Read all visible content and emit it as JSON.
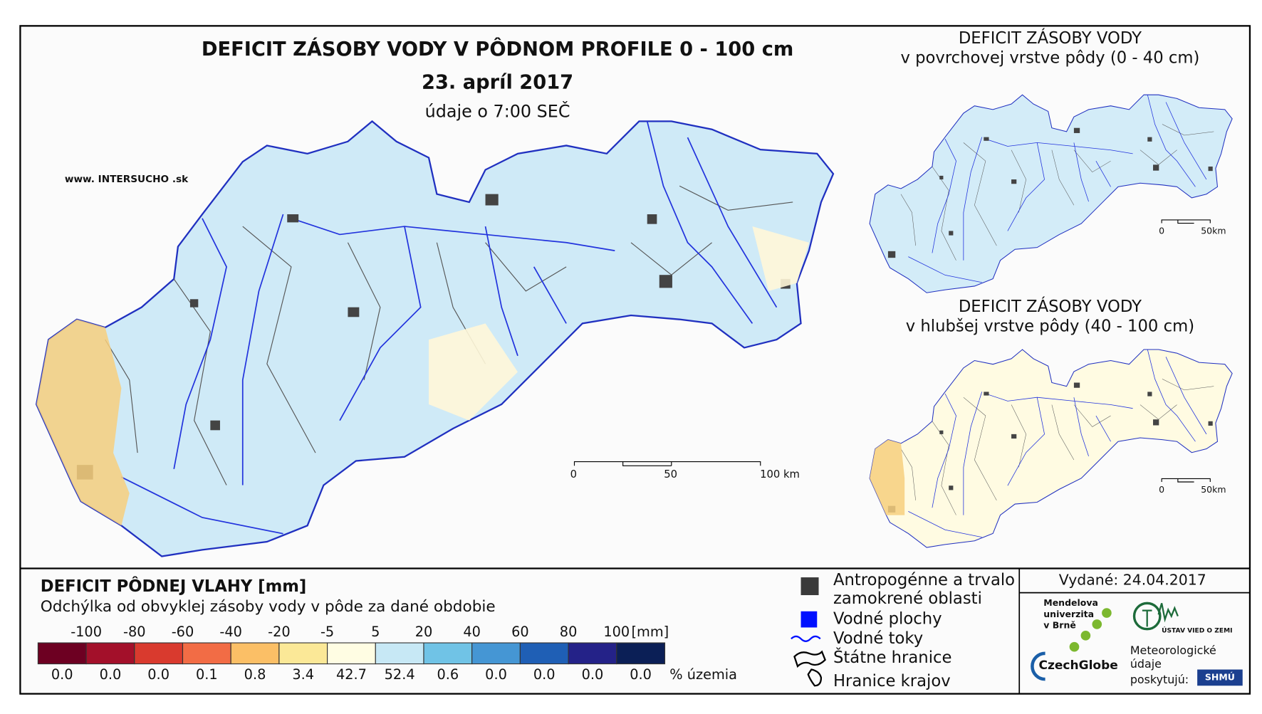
{
  "header": {
    "title": "DEFICIT ZÁSOBY VODY V PÔDNOM PROFILE 0 - 100 cm",
    "date": "23. apríl 2017",
    "time_note": "údaje o 7:00 SEČ",
    "website": "www. INTERSUCHO .sk"
  },
  "main_map": {
    "scalebar": [
      "0",
      "50",
      "100 km"
    ]
  },
  "inset_maps": [
    {
      "title": "DEFICIT ZÁSOBY VODY",
      "subtitle": "v povrchovej vrstve pôdy (0 - 40 cm)",
      "scalebar": [
        "0",
        "50km"
      ],
      "fill": "#d3ecf8"
    },
    {
      "title": "DEFICIT ZÁSOBY VODY",
      "subtitle": "v hlubšej vrstve pôdy (40 - 100 cm)",
      "scalebar": [
        "0",
        "50km"
      ],
      "fill": "#fffbe2"
    }
  ],
  "legend": {
    "title": "DEFICIT PÔDNEJ VLAHY [mm]",
    "subtitle": "Odchýlka od obvyklej zásoby vody v pôde za dané obdobie",
    "ticks": [
      "-100",
      "-80",
      "-60",
      "-40",
      "-20",
      "-5",
      "5",
      "20",
      "40",
      "60",
      "80",
      "100"
    ],
    "unit": "[mm]",
    "percent_label": "% územia",
    "classes": [
      {
        "color": "#6d0022",
        "percent": "0.0"
      },
      {
        "color": "#a3102a",
        "percent": "0.0"
      },
      {
        "color": "#d93a2e",
        "percent": "0.0"
      },
      {
        "color": "#f26c45",
        "percent": "0.1"
      },
      {
        "color": "#fbbf66",
        "percent": "0.8"
      },
      {
        "color": "#fbe897",
        "percent": "3.4"
      },
      {
        "color": "#fffde3",
        "percent": "42.7"
      },
      {
        "color": "#c7e8f5",
        "percent": "52.4"
      },
      {
        "color": "#70c3e6",
        "percent": "0.6"
      },
      {
        "color": "#4596d4",
        "percent": "0.0"
      },
      {
        "color": "#1f5fb5",
        "percent": "0.0"
      },
      {
        "color": "#242288",
        "percent": "0.0"
      },
      {
        "color": "#0b1f56",
        "percent": "0.0"
      }
    ],
    "symbols": [
      "Antropogénne a trvalo",
      "zamokrené oblasti",
      "Vodné plochy",
      "Vodné toky",
      "Štátne hranice",
      "Hranice krajov"
    ]
  },
  "issued": "Vydané: 24.04.2017",
  "logos": {
    "mendel": [
      "Mendelova",
      "univerzita",
      "v Brně"
    ],
    "czechglobe": "CzechGlobe",
    "uvz": "ÚSTAV VIED O ZEMI",
    "meteo": [
      "Meteorologické",
      "údaje",
      "poskytujú:"
    ],
    "shmu": "SHMÚ"
  }
}
